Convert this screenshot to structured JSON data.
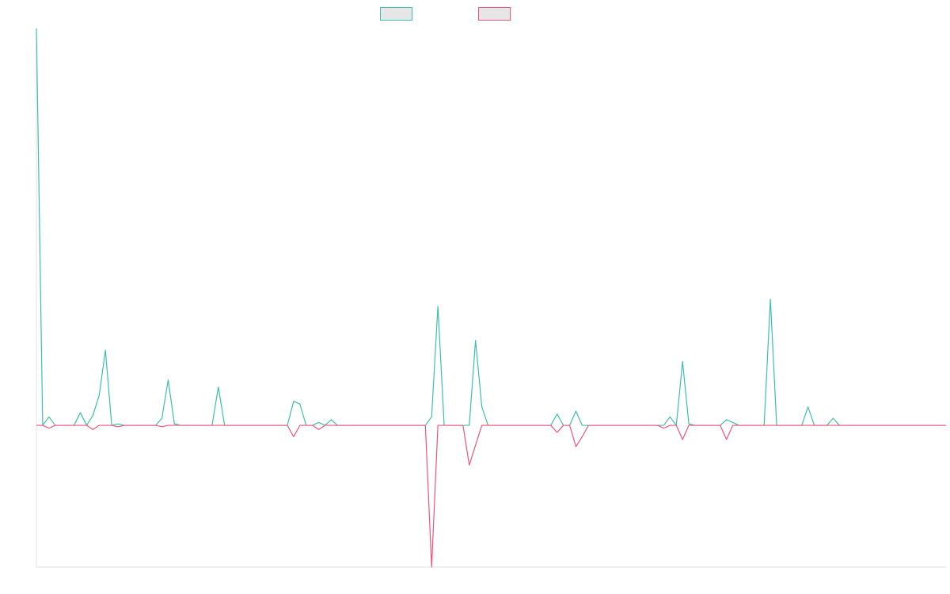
{
  "chart_data": {
    "type": "line",
    "title": "",
    "xlabel": "",
    "ylabel": "",
    "grid": false,
    "legend_position": "top-center",
    "x_count": 146,
    "ylim": [
      -100,
      280
    ],
    "series": [
      {
        "color": "#3cbfae",
        "fill_color": "#e6e6e6",
        "points": [
          [
            0,
            280
          ],
          [
            2,
            6
          ],
          [
            3,
            0
          ],
          [
            7,
            9
          ],
          [
            8,
            0
          ],
          [
            9,
            7
          ],
          [
            10,
            21
          ],
          [
            11,
            53
          ],
          [
            13,
            1
          ],
          [
            20,
            5
          ],
          [
            21,
            32
          ],
          [
            22,
            1
          ],
          [
            29,
            27
          ],
          [
            30,
            0
          ],
          [
            41,
            17
          ],
          [
            42,
            15
          ],
          [
            43,
            0
          ],
          [
            45,
            2
          ],
          [
            46,
            0
          ],
          [
            47,
            4
          ],
          [
            48,
            0
          ],
          [
            63,
            6
          ],
          [
            64,
            84
          ],
          [
            65,
            0
          ],
          [
            69,
            0
          ],
          [
            70,
            60
          ],
          [
            71,
            13
          ],
          [
            72,
            0
          ],
          [
            83,
            8
          ],
          [
            84,
            0
          ],
          [
            86,
            10
          ],
          [
            87,
            0
          ],
          [
            101,
            6
          ],
          [
            102,
            0
          ],
          [
            103,
            45
          ],
          [
            104,
            1
          ],
          [
            110,
            4
          ],
          [
            111,
            2
          ],
          [
            112,
            0
          ],
          [
            117,
            89
          ],
          [
            118,
            0
          ],
          [
            123,
            13
          ],
          [
            124,
            0
          ],
          [
            127,
            5
          ],
          [
            128,
            0
          ]
        ]
      },
      {
        "color": "#f0547a",
        "fill_color": "#e6e6e6",
        "points": [
          [
            0,
            0
          ],
          [
            2,
            -2
          ],
          [
            3,
            0
          ],
          [
            9,
            -3
          ],
          [
            10,
            0
          ],
          [
            13,
            -1
          ],
          [
            20,
            -1
          ],
          [
            21,
            0
          ],
          [
            41,
            -8
          ],
          [
            42,
            0
          ],
          [
            45,
            -3
          ],
          [
            46,
            0
          ],
          [
            63,
            -100
          ],
          [
            64,
            0
          ],
          [
            69,
            -28
          ],
          [
            70,
            -14
          ],
          [
            71,
            0
          ],
          [
            83,
            -5
          ],
          [
            84,
            0
          ],
          [
            86,
            -15
          ],
          [
            87,
            -8
          ],
          [
            88,
            0
          ],
          [
            100,
            -2
          ],
          [
            101,
            0
          ],
          [
            103,
            -10
          ],
          [
            104,
            0
          ],
          [
            110,
            -10
          ],
          [
            111,
            0
          ]
        ]
      }
    ]
  }
}
